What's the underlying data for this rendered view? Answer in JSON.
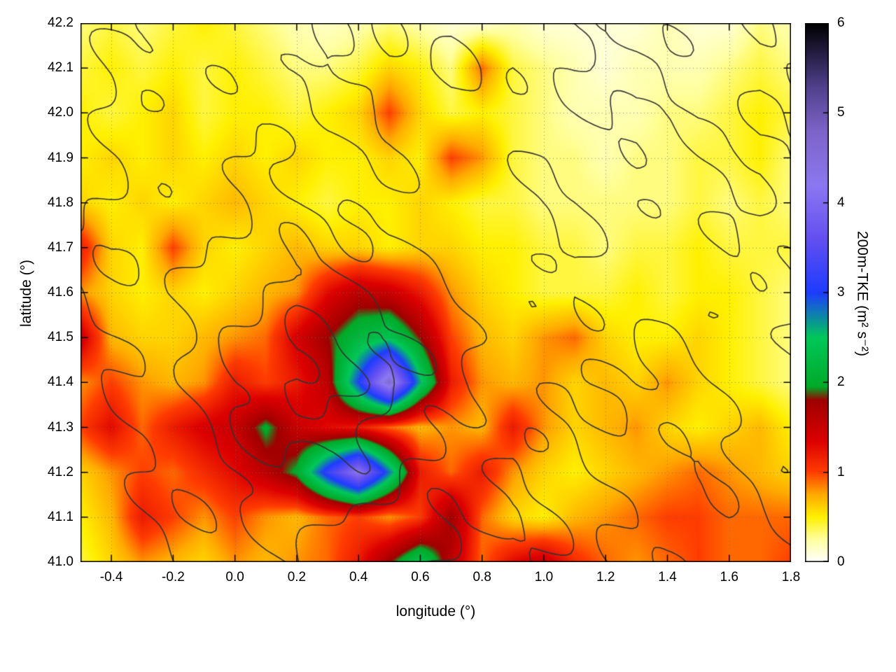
{
  "chart_data": {
    "type": "heatmap",
    "title": "",
    "xlabel": "longitude (°)",
    "ylabel": "latitude (°)",
    "colorbar_label": "200m-TKE (m² s⁻²)",
    "x_range": [
      -0.5,
      1.8
    ],
    "y_range": [
      41.0,
      42.2
    ],
    "x_ticks": [
      -0.4,
      -0.2,
      0.0,
      0.2,
      0.4,
      0.6,
      0.8,
      1.0,
      1.2,
      1.4,
      1.6,
      1.8
    ],
    "y_ticks": [
      41.0,
      41.1,
      41.2,
      41.3,
      41.4,
      41.5,
      41.6,
      41.7,
      41.8,
      41.9,
      42.0,
      42.1,
      42.2
    ],
    "grid_lines": true,
    "colorbar_range": [
      0,
      6
    ],
    "colorbar_ticks": [
      0,
      1,
      2,
      3,
      4,
      5,
      6
    ],
    "colormap": [
      [
        0.0,
        "#ffffff"
      ],
      [
        0.25,
        "#ffffa0"
      ],
      [
        0.5,
        "#fff000"
      ],
      [
        0.75,
        "#ffaa00"
      ],
      [
        1.0,
        "#ff3c00"
      ],
      [
        1.35,
        "#dc0000"
      ],
      [
        1.8,
        "#a00000"
      ],
      [
        1.95,
        "#00aa28"
      ],
      [
        2.5,
        "#00c85a"
      ],
      [
        3.0,
        "#1e3cff"
      ],
      [
        3.6,
        "#6450f0"
      ],
      [
        4.2,
        "#8c78f0"
      ],
      [
        4.8,
        "#7d64c8"
      ],
      [
        5.3,
        "#50408c"
      ],
      [
        6.0,
        "#000000"
      ]
    ],
    "grid": {
      "lon_start": -0.5,
      "lon_step": 0.1,
      "lat_start": 42.2,
      "lat_step": -0.1,
      "values": [
        [
          0.3,
          0.4,
          0.3,
          0.4,
          0.5,
          0.4,
          0.3,
          0.2,
          0.15,
          0.2,
          0.3,
          0.2,
          0.1,
          0.1,
          0.2,
          0.1,
          0.1,
          0.1,
          0.1,
          0.2,
          0.1,
          0.1,
          0.3,
          0.2
        ],
        [
          0.4,
          0.5,
          0.4,
          0.5,
          0.4,
          0.5,
          0.4,
          0.3,
          0.3,
          0.4,
          0.6,
          0.5,
          0.3,
          0.9,
          0.4,
          0.3,
          0.2,
          0.1,
          0.2,
          0.2,
          0.2,
          0.3,
          0.4,
          0.3
        ],
        [
          0.5,
          0.4,
          0.5,
          0.6,
          0.4,
          0.5,
          0.5,
          0.4,
          0.5,
          0.6,
          1.0,
          0.6,
          0.4,
          0.5,
          0.4,
          0.3,
          0.2,
          0.2,
          0.2,
          0.3,
          0.3,
          0.4,
          0.5,
          0.4
        ],
        [
          0.5,
          0.6,
          0.5,
          0.6,
          0.5,
          0.6,
          0.5,
          0.6,
          0.5,
          0.5,
          0.6,
          0.5,
          1.0,
          0.8,
          0.4,
          0.3,
          0.3,
          0.2,
          0.3,
          0.3,
          0.4,
          0.4,
          0.5,
          0.3
        ],
        [
          0.6,
          0.5,
          0.6,
          0.5,
          0.6,
          0.7,
          0.6,
          0.5,
          0.4,
          0.5,
          0.5,
          0.6,
          0.5,
          0.4,
          0.4,
          0.3,
          0.3,
          0.3,
          0.3,
          0.3,
          0.4,
          0.3,
          0.4,
          0.3
        ],
        [
          1.2,
          0.6,
          0.5,
          1.0,
          0.6,
          0.5,
          0.6,
          0.7,
          0.6,
          0.6,
          0.5,
          0.6,
          0.6,
          0.5,
          0.5,
          0.4,
          0.4,
          0.3,
          0.4,
          0.4,
          0.5,
          0.4,
          0.4,
          0.4
        ],
        [
          0.8,
          0.6,
          0.5,
          0.6,
          0.5,
          0.6,
          0.7,
          0.8,
          1.3,
          1.6,
          1.5,
          1.2,
          0.8,
          0.6,
          0.5,
          0.4,
          0.4,
          0.4,
          0.5,
          0.4,
          0.5,
          0.5,
          0.4,
          0.3
        ],
        [
          1.5,
          0.7,
          0.6,
          0.6,
          0.7,
          0.8,
          0.9,
          1.4,
          1.8,
          2.2,
          2.4,
          1.8,
          1.0,
          0.7,
          0.6,
          0.8,
          0.9,
          0.6,
          0.5,
          0.5,
          0.6,
          0.5,
          0.4,
          0.3
        ],
        [
          0.8,
          1.0,
          0.8,
          0.7,
          0.8,
          1.2,
          1.0,
          1.2,
          1.6,
          3.0,
          4.6,
          2.6,
          1.2,
          0.8,
          0.7,
          0.8,
          0.6,
          0.7,
          0.6,
          0.8,
          0.6,
          0.5,
          0.4,
          0.3
        ],
        [
          1.0,
          1.3,
          0.9,
          1.2,
          1.4,
          1.5,
          2.0,
          1.5,
          1.3,
          1.2,
          0.9,
          0.7,
          0.8,
          0.7,
          1.2,
          0.8,
          0.6,
          0.7,
          0.8,
          0.6,
          0.5,
          0.6,
          0.7,
          0.5
        ],
        [
          0.6,
          0.8,
          1.0,
          0.9,
          1.1,
          1.3,
          1.6,
          2.0,
          3.2,
          4.2,
          2.8,
          1.2,
          0.9,
          1.2,
          0.8,
          0.6,
          0.5,
          0.6,
          0.7,
          0.8,
          0.9,
          0.8,
          0.7,
          0.6
        ],
        [
          0.5,
          0.7,
          1.2,
          1.0,
          0.8,
          1.0,
          0.8,
          0.7,
          0.9,
          1.0,
          0.8,
          1.0,
          1.8,
          0.9,
          0.6,
          0.5,
          0.7,
          0.8,
          0.9,
          1.0,
          1.0,
          0.9,
          0.9,
          0.9
        ],
        [
          0.4,
          0.6,
          0.8,
          0.7,
          0.6,
          0.8,
          0.7,
          0.8,
          0.9,
          1.2,
          1.8,
          2.4,
          1.6,
          0.9,
          1.3,
          1.5,
          1.1,
          0.9,
          0.8,
          0.9,
          1.0,
          0.9,
          0.9,
          1.0
        ]
      ]
    },
    "contours": {
      "color": "#333333",
      "levels": [
        340,
        460,
        580,
        700
      ],
      "terrain": [
        [
          260,
          300,
          340,
          420,
          400,
          340,
          380,
          420,
          440,
          400,
          340,
          380,
          430,
          400,
          340,
          400,
          420,
          480,
          460,
          420,
          380,
          420,
          440,
          400
        ],
        [
          300,
          340,
          400,
          440,
          420,
          400,
          420,
          470,
          500,
          440,
          400,
          440,
          480,
          440,
          400,
          430,
          460,
          500,
          480,
          440,
          400,
          430,
          460,
          420
        ],
        [
          320,
          360,
          420,
          400,
          440,
          420,
          400,
          440,
          520,
          500,
          420,
          400,
          440,
          420,
          380,
          400,
          420,
          460,
          500,
          460,
          420,
          440,
          480,
          440
        ],
        [
          300,
          340,
          380,
          420,
          400,
          440,
          460,
          420,
          400,
          440,
          480,
          440,
          400,
          380,
          360,
          360,
          380,
          400,
          440,
          420,
          440,
          460,
          500,
          460
        ],
        [
          320,
          360,
          400,
          380,
          420,
          460,
          500,
          480,
          440,
          420,
          400,
          420,
          440,
          400,
          380,
          350,
          340,
          360,
          380,
          400,
          420,
          440,
          460,
          420
        ],
        [
          340,
          380,
          360,
          400,
          440,
          480,
          520,
          560,
          540,
          500,
          460,
          440,
          420,
          400,
          380,
          360,
          340,
          360,
          380,
          400,
          420,
          440,
          420,
          380
        ],
        [
          320,
          360,
          400,
          440,
          480,
          540,
          600,
          640,
          620,
          580,
          540,
          500,
          460,
          420,
          400,
          380,
          360,
          380,
          400,
          420,
          440,
          420,
          400,
          360
        ],
        [
          300,
          340,
          380,
          420,
          500,
          580,
          660,
          720,
          700,
          660,
          600,
          540,
          480,
          440,
          400,
          380,
          400,
          420,
          440,
          460,
          440,
          420,
          380,
          340
        ],
        [
          280,
          320,
          360,
          440,
          520,
          600,
          680,
          740,
          720,
          680,
          620,
          560,
          500,
          440,
          400,
          420,
          440,
          460,
          480,
          500,
          480,
          440,
          400,
          360
        ],
        [
          260,
          300,
          340,
          400,
          460,
          540,
          620,
          660,
          640,
          600,
          560,
          500,
          440,
          400,
          380,
          400,
          440,
          480,
          520,
          540,
          520,
          480,
          420,
          380
        ],
        [
          240,
          280,
          320,
          360,
          420,
          480,
          540,
          580,
          560,
          520,
          480,
          440,
          400,
          360,
          340,
          380,
          420,
          460,
          500,
          540,
          560,
          520,
          460,
          400
        ],
        [
          220,
          260,
          300,
          340,
          380,
          420,
          460,
          500,
          480,
          460,
          420,
          400,
          360,
          340,
          320,
          360,
          400,
          440,
          480,
          520,
          540,
          560,
          500,
          440
        ],
        [
          200,
          240,
          280,
          320,
          340,
          380,
          420,
          440,
          420,
          400,
          380,
          360,
          340,
          320,
          300,
          340,
          380,
          420,
          460,
          500,
          520,
          540,
          520,
          460
        ]
      ]
    }
  }
}
